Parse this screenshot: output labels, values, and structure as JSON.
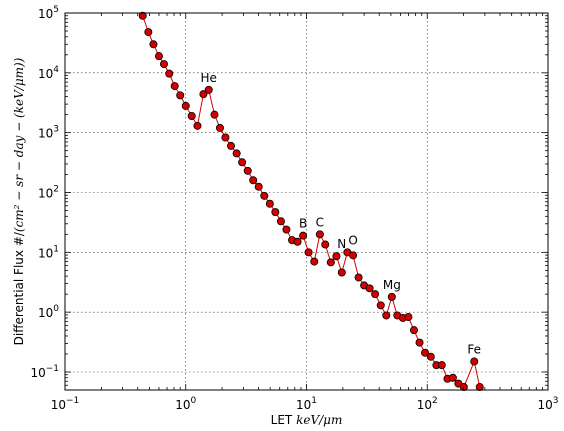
{
  "chart_data": {
    "type": "line",
    "x_scale": "log",
    "y_scale": "log",
    "xlim": [
      0.1,
      1000
    ],
    "ylim": [
      0.05,
      100000
    ],
    "grid": true,
    "xlabel": {
      "prefix": "LET",
      "math": "keV/μm"
    },
    "ylabel": {
      "prefix": "Differential Flux   #/",
      "math": "(cm² − sr − day − (keV/μm))"
    },
    "x_ticks": [
      {
        "value": 0.1,
        "base": "10",
        "exp": "−1"
      },
      {
        "value": 1,
        "base": "10",
        "exp": "0"
      },
      {
        "value": 10,
        "base": "10",
        "exp": "1"
      },
      {
        "value": 100,
        "base": "10",
        "exp": "2"
      },
      {
        "value": 1000,
        "base": "10",
        "exp": "3"
      }
    ],
    "y_ticks": [
      {
        "value": 0.1,
        "base": "10",
        "exp": "−1"
      },
      {
        "value": 1,
        "base": "10",
        "exp": "0"
      },
      {
        "value": 10,
        "base": "10",
        "exp": "1"
      },
      {
        "value": 100,
        "base": "10",
        "exp": "2"
      },
      {
        "value": 1000,
        "base": "10",
        "exp": "3"
      },
      {
        "value": 10000,
        "base": "10",
        "exp": "4"
      },
      {
        "value": 100000,
        "base": "10",
        "exp": "5"
      }
    ],
    "series": [
      {
        "color": "#d40000",
        "marker": "circle",
        "points": [
          [
            0.44,
            90000
          ],
          [
            0.49,
            48000
          ],
          [
            0.54,
            30000
          ],
          [
            0.6,
            19000
          ],
          [
            0.66,
            14000
          ],
          [
            0.73,
            9700
          ],
          [
            0.81,
            6000
          ],
          [
            0.9,
            4200
          ],
          [
            1.0,
            2800
          ],
          [
            1.12,
            1900
          ],
          [
            1.25,
            1300
          ],
          [
            1.4,
            4400
          ],
          [
            1.55,
            5200
          ],
          [
            1.73,
            2000
          ],
          [
            1.92,
            1200
          ],
          [
            2.13,
            830
          ],
          [
            2.37,
            600
          ],
          [
            2.64,
            450
          ],
          [
            2.93,
            320
          ],
          [
            3.26,
            230
          ],
          [
            3.62,
            160
          ],
          [
            4.02,
            125
          ],
          [
            4.47,
            88
          ],
          [
            4.97,
            65
          ],
          [
            5.52,
            47
          ],
          [
            6.14,
            33
          ],
          [
            6.82,
            24
          ],
          [
            7.59,
            16
          ],
          [
            8.43,
            15
          ],
          [
            9.37,
            19
          ],
          [
            10.4,
            10
          ],
          [
            11.6,
            7
          ],
          [
            12.9,
            20
          ],
          [
            14.3,
            13.5
          ],
          [
            15.9,
            6.8
          ],
          [
            17.7,
            8.6
          ],
          [
            19.6,
            4.6
          ],
          [
            21.8,
            10
          ],
          [
            24.3,
            8.9
          ],
          [
            27.0,
            3.8
          ],
          [
            30.0,
            2.8
          ],
          [
            33.3,
            2.5
          ],
          [
            37.0,
            2.0
          ],
          [
            41.2,
            1.3
          ],
          [
            45.8,
            0.88
          ],
          [
            50.9,
            1.8
          ],
          [
            56.5,
            0.88
          ],
          [
            62.8,
            0.8
          ],
          [
            69.8,
            0.83
          ],
          [
            77.6,
            0.5
          ],
          [
            86.3,
            0.31
          ],
          [
            95.9,
            0.21
          ],
          [
            107,
            0.18
          ],
          [
            119,
            0.13
          ],
          [
            132,
            0.13
          ],
          [
            147,
            0.077
          ],
          [
            163,
            0.08
          ],
          [
            181,
            0.064
          ],
          [
            201,
            0.056
          ],
          [
            245,
            0.15
          ],
          [
            272,
            0.056
          ]
        ]
      }
    ],
    "annotations": [
      {
        "text": "He",
        "x": 1.55,
        "y": 5200
      },
      {
        "text": "B",
        "x": 9.37,
        "y": 19
      },
      {
        "text": "C",
        "x": 12.9,
        "y": 20
      },
      {
        "text": "N",
        "x": 19.6,
        "y": 8.6
      },
      {
        "text": "O",
        "x": 24.3,
        "y": 10
      },
      {
        "text": "Mg",
        "x": 50.9,
        "y": 1.8
      },
      {
        "text": "Fe",
        "x": 245,
        "y": 0.15
      }
    ]
  }
}
